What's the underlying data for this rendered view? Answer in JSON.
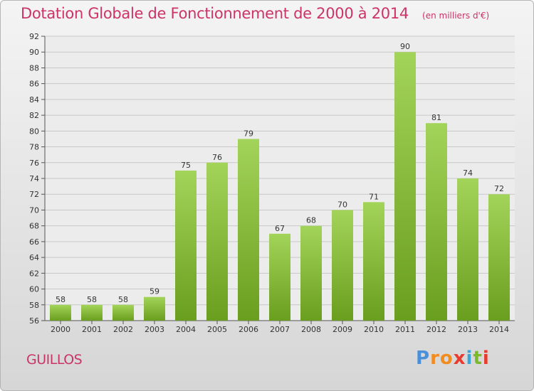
{
  "title": "Dotation Globale de Fonctionnement de 2000 à 2014",
  "unit_note": "(en milliers d'€)",
  "commune": "GUILLOS",
  "logo": {
    "letters": [
      "P",
      "r",
      "o",
      "x",
      "i",
      "t",
      "i"
    ],
    "colors": [
      "#4a90d9",
      "#f28c1e",
      "#f28c1e",
      "#e63b2e",
      "#3aa5d8",
      "#7ab929",
      "#e63b2e"
    ]
  },
  "colors": {
    "bar_light": "#a3d45a",
    "bar_dark": "#6a9e1e",
    "title": "#cc3366"
  },
  "chart_data": {
    "type": "bar",
    "categories": [
      "2000",
      "2001",
      "2002",
      "2003",
      "2004",
      "2005",
      "2006",
      "2007",
      "2008",
      "2009",
      "2010",
      "2011",
      "2012",
      "2013",
      "2014"
    ],
    "values": [
      58,
      58,
      58,
      59,
      75,
      76,
      79,
      67,
      68,
      70,
      71,
      90,
      81,
      74,
      72
    ],
    "ylim": [
      56,
      92
    ],
    "yticks": [
      56,
      58,
      60,
      62,
      64,
      66,
      68,
      70,
      72,
      74,
      76,
      78,
      80,
      82,
      84,
      86,
      88,
      90,
      92
    ],
    "grid": true
  }
}
